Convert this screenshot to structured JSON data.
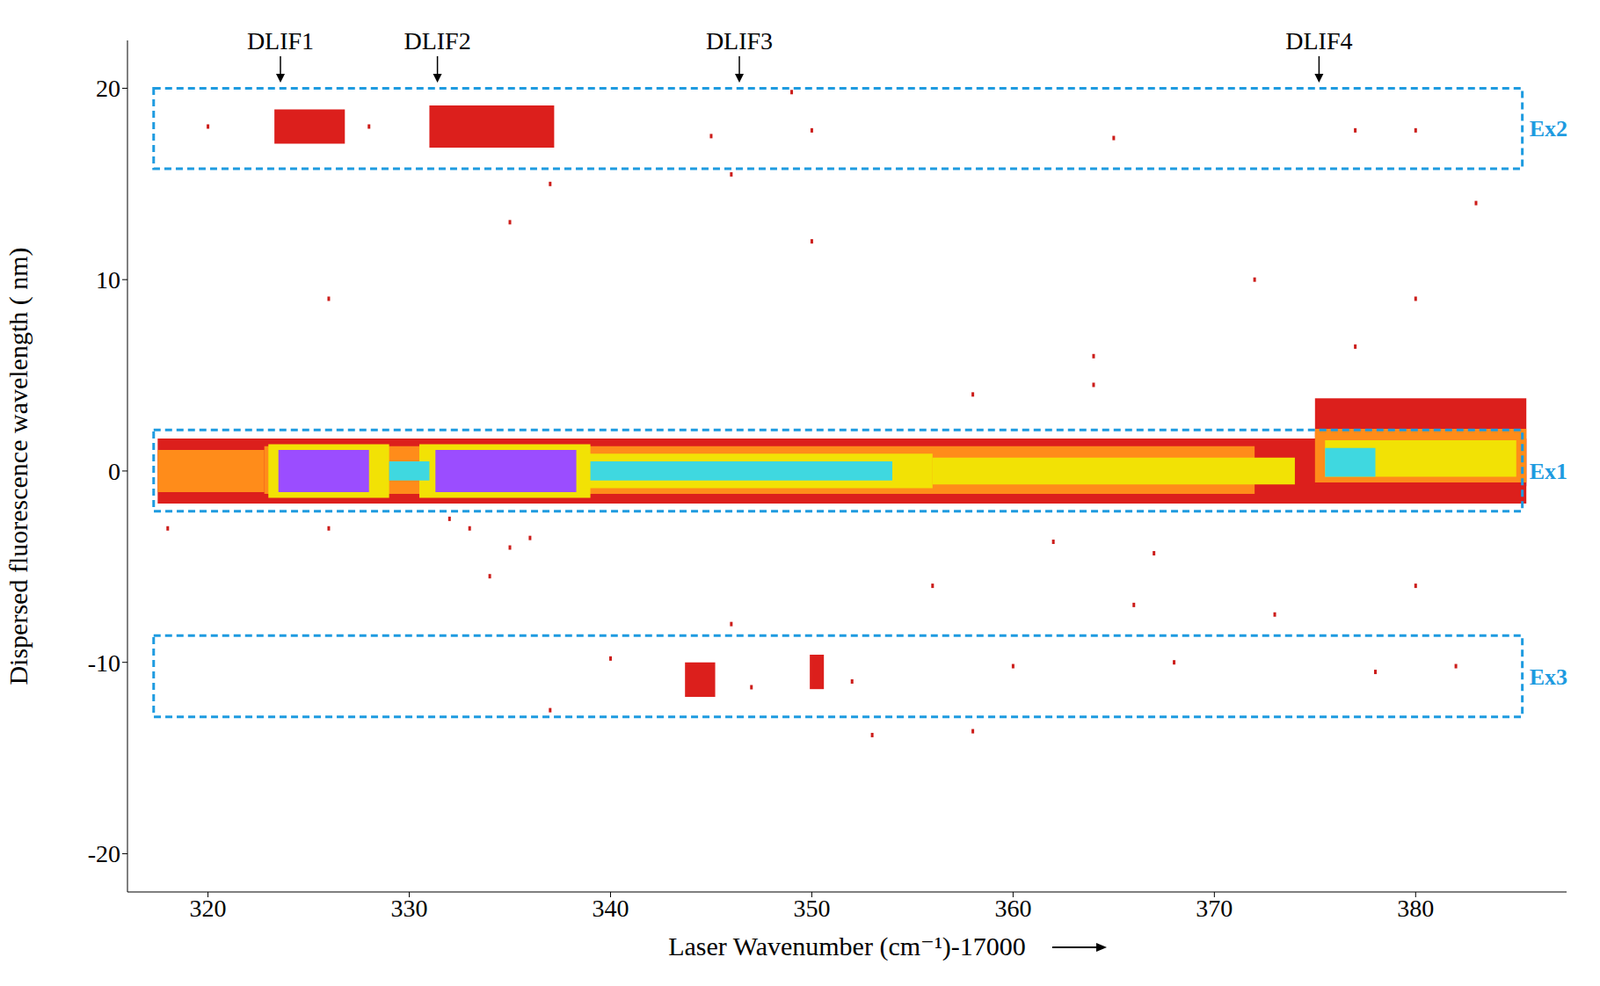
{
  "chart_data": {
    "type": "heatmap",
    "x_label": "Laser Wavenumber (cm⁻¹)-17000",
    "y_label": "Dispersed fluorescence wavelength ( nm)",
    "xlim": [
      316,
      387.5
    ],
    "xticks": [
      320,
      330,
      340,
      350,
      360,
      370,
      380
    ],
    "ylim": [
      -22,
      22.5
    ],
    "yticks": [
      -20,
      -10,
      0,
      10,
      20
    ],
    "colors": [
      "#dc1f1c",
      "#ff8c1a",
      "#f2e205",
      "#3fd8e0",
      "#9b4dff"
    ],
    "cells": [
      {
        "x": [
          317.5,
          385.5
        ],
        "y": [
          -1.7,
          1.7
        ],
        "level": 1
      },
      {
        "x": [
          375,
          385.5
        ],
        "y": [
          -0.8,
          3.8
        ],
        "level": 1
      },
      {
        "x": [
          317.5,
          322.8
        ],
        "y": [
          -1.1,
          1.1
        ],
        "level": 2
      },
      {
        "x": [
          322.8,
          372
        ],
        "y": [
          -1.2,
          1.3
        ],
        "level": 2
      },
      {
        "x": [
          323,
          329
        ],
        "y": [
          -1.4,
          1.4
        ],
        "level": 3
      },
      {
        "x": [
          330.5,
          339
        ],
        "y": [
          -1.4,
          1.4
        ],
        "level": 3
      },
      {
        "x": [
          338,
          356
        ],
        "y": [
          -0.9,
          0.9
        ],
        "level": 3
      },
      {
        "x": [
          356,
          374
        ],
        "y": [
          -0.7,
          0.7
        ],
        "level": 3
      },
      {
        "x": [
          375,
          385.5
        ],
        "y": [
          -0.6,
          2.2
        ],
        "level": 2
      },
      {
        "x": [
          375.5,
          385
        ],
        "y": [
          -0.3,
          1.6
        ],
        "level": 3
      },
      {
        "x": [
          375.5,
          378
        ],
        "y": [
          -0.3,
          1.2
        ],
        "level": 4
      },
      {
        "x": [
          329,
          331
        ],
        "y": [
          -0.5,
          0.5
        ],
        "level": 4
      },
      {
        "x": [
          339,
          354
        ],
        "y": [
          -0.5,
          0.5
        ],
        "level": 4
      },
      {
        "x": [
          323.5,
          328
        ],
        "y": [
          -1.1,
          1.1
        ],
        "level": 5
      },
      {
        "x": [
          331.3,
          338.3
        ],
        "y": [
          -1.1,
          1.1
        ],
        "level": 5
      },
      {
        "x": [
          323.3,
          326.8
        ],
        "y": [
          17.1,
          18.9
        ],
        "level": 1
      },
      {
        "x": [
          331,
          337.2
        ],
        "y": [
          16.9,
          19.1
        ],
        "level": 1
      },
      {
        "x": [
          343.7,
          345.2
        ],
        "y": [
          -11.8,
          -10
        ],
        "level": 1
      },
      {
        "x": [
          349.9,
          350.6
        ],
        "y": [
          -11.4,
          -9.6
        ],
        "level": 1
      }
    ],
    "points": {
      "color": "#cc1d1a",
      "xy": [
        [
          333,
          -3
        ],
        [
          335,
          -4
        ],
        [
          334,
          -5.5
        ],
        [
          336,
          -3.5
        ],
        [
          332,
          -2.5
        ],
        [
          346,
          -8
        ],
        [
          356,
          -6
        ],
        [
          366,
          -7
        ],
        [
          373,
          -7.5
        ],
        [
          380,
          -6
        ],
        [
          368,
          -10
        ],
        [
          378,
          -10.5
        ],
        [
          382,
          -10.2
        ],
        [
          360,
          -10.2
        ],
        [
          335,
          13
        ],
        [
          337,
          15
        ],
        [
          346,
          15.5
        ],
        [
          383,
          14
        ],
        [
          380,
          9
        ],
        [
          326,
          9
        ],
        [
          350,
          12
        ],
        [
          372,
          10
        ],
        [
          364,
          6
        ],
        [
          377,
          6.5
        ],
        [
          340,
          -9.8
        ],
        [
          337,
          -12.5
        ],
        [
          352,
          -11
        ],
        [
          347,
          -11.3
        ],
        [
          320,
          18
        ],
        [
          328,
          18
        ],
        [
          345,
          17.5
        ],
        [
          350,
          17.8
        ],
        [
          365,
          17.4
        ],
        [
          377,
          17.8
        ],
        [
          380,
          17.8
        ],
        [
          349,
          19.8
        ],
        [
          353,
          -13.8
        ],
        [
          358,
          -13.6
        ],
        [
          362,
          -3.7
        ],
        [
          367,
          -4.3
        ],
        [
          318,
          -3
        ],
        [
          326,
          -3
        ],
        [
          358,
          4
        ],
        [
          364,
          4.5
        ]
      ]
    },
    "regions": [
      {
        "label": "Ex2",
        "x": [
          317.3,
          385.3
        ],
        "y": [
          15.8,
          20
        ],
        "color": "#1e9be0"
      },
      {
        "label": "Ex1",
        "x": [
          317.3,
          385.3
        ],
        "y": [
          -2.1,
          2.15
        ],
        "color": "#1e9be0"
      },
      {
        "label": "Ex3",
        "x": [
          317.3,
          385.3
        ],
        "y": [
          -12.85,
          -8.6
        ],
        "color": "#1e9be0"
      }
    ],
    "annotations": [
      {
        "label": "DLIF1",
        "x": 323.6,
        "y": 20.3
      },
      {
        "label": "DLIF2",
        "x": 331.4,
        "y": 20.3
      },
      {
        "label": "DLIF3",
        "x": 346.4,
        "y": 20.3
      },
      {
        "label": "DLIF4",
        "x": 375.2,
        "y": 20.3
      }
    ]
  }
}
